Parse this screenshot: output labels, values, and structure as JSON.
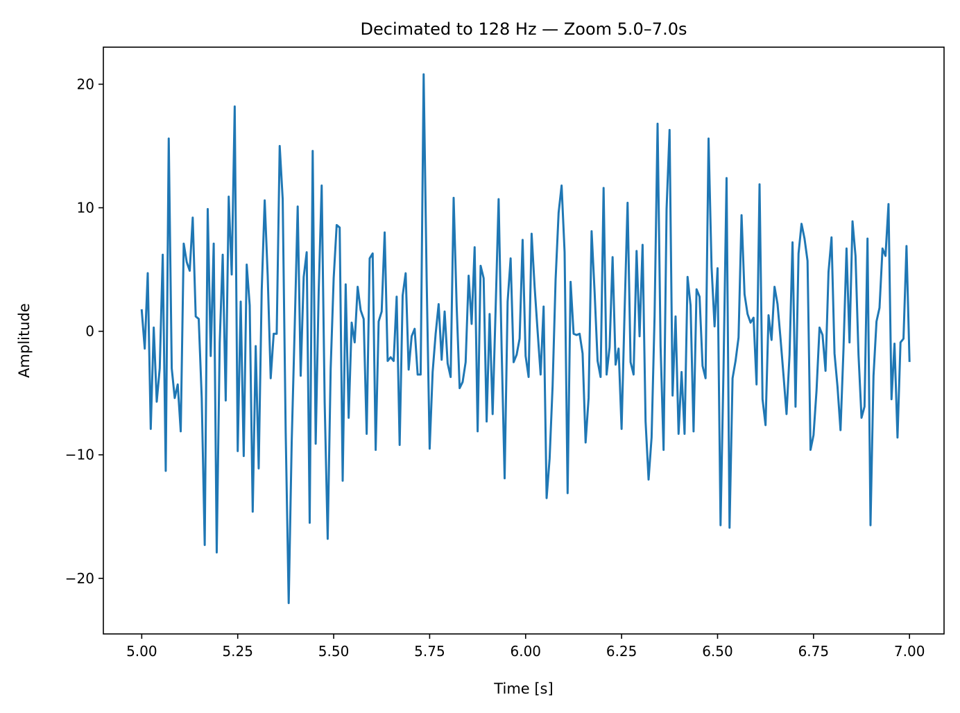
{
  "chart_data": {
    "type": "line",
    "title": "Decimated to 128 Hz — Zoom 5.0–7.0s",
    "xlabel": "Time [s]",
    "ylabel": "Amplitude",
    "xlim": [
      4.9,
      7.09
    ],
    "ylim": [
      -24.5,
      23.0
    ],
    "x_ticks": [
      5.0,
      5.25,
      5.5,
      5.75,
      6.0,
      6.25,
      6.5,
      6.75,
      7.0
    ],
    "x_tick_labels": [
      "5.00",
      "5.25",
      "5.50",
      "5.75",
      "6.00",
      "6.25",
      "6.50",
      "6.75",
      "7.00"
    ],
    "y_ticks": [
      -20,
      -10,
      0,
      10,
      20
    ],
    "y_tick_labels": [
      "−20",
      "−10",
      "0",
      "10",
      "20"
    ],
    "grid": false,
    "line_color": "#1f77b4",
    "x_start": 5.0,
    "x_step": 0.0078125,
    "series": [
      {
        "values": [
          1.7,
          -1.4,
          4.7,
          -7.9,
          0.3,
          -5.7,
          -3.0,
          6.2,
          -11.3,
          15.6,
          -3.0,
          -5.4,
          -4.3,
          -8.1,
          7.1,
          5.6,
          4.9,
          9.2,
          1.2,
          1.0,
          -5.4,
          -17.3,
          9.9,
          -2.0,
          7.1,
          -17.9,
          -0.9,
          6.2,
          -5.6,
          10.9,
          4.6,
          18.2,
          -9.7,
          2.4,
          -10.1,
          5.4,
          2.1,
          -14.6,
          -1.2,
          -11.1,
          3.3,
          10.6,
          4.5,
          -3.8,
          -0.2,
          -0.2,
          15.0,
          10.7,
          -8.2,
          -22.0,
          -9.0,
          0.3,
          10.1,
          -3.6,
          4.4,
          6.4,
          -15.5,
          14.6,
          -9.1,
          3.2,
          11.8,
          -5.8,
          -16.8,
          -3.0,
          4.3,
          8.6,
          8.4,
          -12.1,
          3.8,
          -7.0,
          0.7,
          -0.9,
          3.6,
          1.7,
          1.0,
          -8.3,
          5.9,
          6.3,
          -9.6,
          0.8,
          1.6,
          8.0,
          -2.4,
          -2.1,
          -2.4,
          2.8,
          -9.2,
          2.9,
          4.7,
          -3.1,
          -0.4,
          0.2,
          -3.5,
          -3.5,
          20.8,
          4.2,
          -9.5,
          -3.3,
          -0.2,
          2.2,
          -2.3,
          1.6,
          -2.6,
          -3.7,
          10.8,
          2.1,
          -4.6,
          -4.1,
          -2.5,
          4.5,
          0.6,
          6.8,
          -8.1,
          5.3,
          4.3,
          -7.3,
          1.4,
          -6.7,
          1.8,
          10.7,
          -1.4,
          -11.9,
          2.4,
          5.9,
          -2.5,
          -1.9,
          -0.6,
          7.4,
          -2.0,
          -3.7,
          7.9,
          3.6,
          0.0,
          -3.5,
          2.0,
          -13.5,
          -10.3,
          -4.4,
          4.2,
          9.6,
          11.8,
          6.4,
          -13.1,
          4.0,
          -0.2,
          -0.3,
          -0.2,
          -1.8,
          -9.0,
          -5.4,
          8.1,
          3.2,
          -2.4,
          -3.7,
          11.6,
          -3.5,
          -1.3,
          6.0,
          -2.7,
          -1.4,
          -7.9,
          1.6,
          10.4,
          -2.5,
          -3.5,
          6.5,
          -0.4,
          7.0,
          -7.3,
          -12.0,
          -8.6,
          1.2,
          16.8,
          -1.2,
          -9.6,
          9.9,
          16.3,
          -5.2,
          1.2,
          -8.3,
          -3.3,
          -8.3,
          4.4,
          2.1,
          -8.1,
          3.4,
          2.8,
          -2.8,
          -3.8,
          15.6,
          5.2,
          0.4,
          5.1,
          -15.7,
          -2.9,
          12.4,
          -15.9,
          -3.8,
          -2.4,
          -0.5,
          9.4,
          3.0,
          1.4,
          0.7,
          1.1,
          -4.3,
          11.9,
          -5.5,
          -7.6,
          1.3,
          -0.7,
          3.6,
          2.2,
          -0.6,
          -3.6,
          -6.7,
          -1.9,
          7.2,
          -6.1,
          6.3,
          8.7,
          7.5,
          5.7,
          -9.6,
          -8.4,
          -4.8,
          0.3,
          -0.3,
          -3.2,
          4.8,
          7.6,
          -1.8,
          -4.5,
          -8.0,
          -1.4,
          6.7,
          -0.9,
          8.9,
          6.1,
          -1.9,
          -7.0,
          -6.1,
          7.5,
          -15.7,
          -3.6,
          0.8,
          1.9,
          6.7,
          6.1,
          10.3,
          -5.5,
          -1.0,
          -8.6,
          -0.9,
          -0.6,
          6.9,
          -2.4
        ]
      }
    ]
  }
}
